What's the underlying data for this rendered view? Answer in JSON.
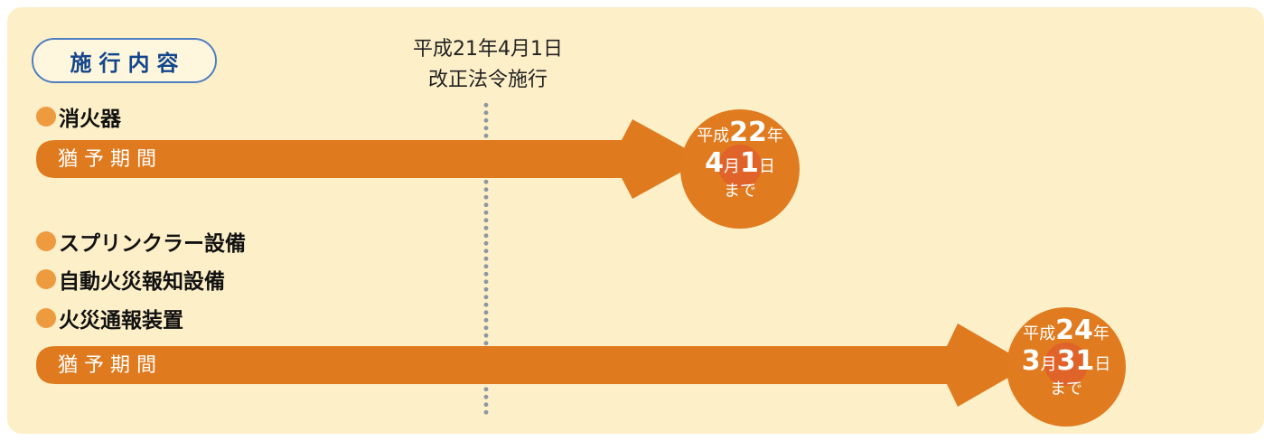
{
  "section_title": "施行内容",
  "law": {
    "date": "平成21年4月1日",
    "caption": "改正法令施行"
  },
  "items": {
    "first": "消火器",
    "second": "スプリンクラー設備",
    "third": "自動火災報知設備",
    "fourth": "火災通報装置"
  },
  "bars": {
    "top_label": "猶予期間",
    "bottom_label": "猶予期間"
  },
  "deadlines": {
    "first": {
      "era": "平成",
      "year": "22",
      "year_unit": "年",
      "month": "4",
      "month_unit": "月",
      "day": "1",
      "day_unit": "日",
      "until": "まで"
    },
    "second": {
      "era": "平成",
      "year": "24",
      "year_unit": "年",
      "month": "3",
      "month_unit": "月",
      "day": "31",
      "day_unit": "日",
      "until": "まで"
    }
  },
  "colors": {
    "panel": "#fdefc8",
    "arrow": "#df7a1e",
    "circle": "#e07b1f",
    "circle_inner": "#e0632a",
    "bullet": "#ee9a3e",
    "pill_border": "#4f7fc0",
    "pill_text": "#14468c",
    "dotted_line": "#8c97a3"
  }
}
